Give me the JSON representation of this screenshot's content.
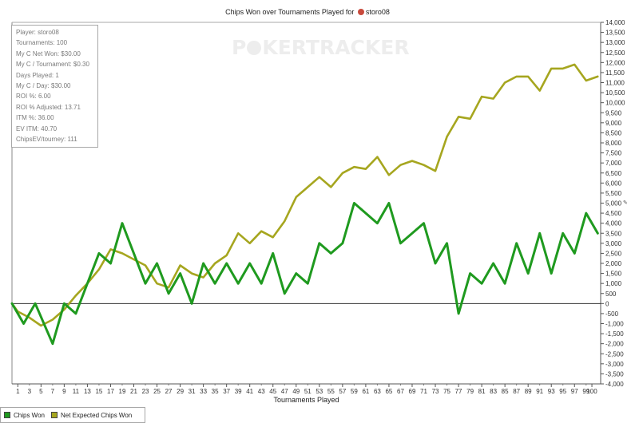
{
  "chart_data": {
    "type": "line",
    "title_prefix": "Chips Won over Tournaments Played for",
    "title_player": "storo08",
    "xlabel": "Tournaments Played",
    "ylabel": "",
    "xlim": [
      0,
      100
    ],
    "ylim": [
      -4000,
      14000
    ],
    "x_ticks": [
      1,
      5,
      9,
      13,
      17,
      21,
      25,
      29,
      33,
      37,
      41,
      45,
      49,
      53,
      57,
      61,
      65,
      69,
      73,
      77,
      81,
      85,
      89,
      93,
      97,
      100
    ],
    "x_tick_labels": [
      "1",
      "5",
      "9",
      "13",
      "17",
      "21",
      "25",
      "29",
      "33",
      "37",
      "41",
      "45",
      "49",
      "53",
      "57",
      "61",
      "65",
      "69",
      "73",
      "77",
      "81",
      "85",
      "89",
      "93",
      "97",
      "100"
    ],
    "x_minor_ticks": [
      3,
      7,
      11,
      15,
      19,
      23,
      27,
      31,
      35,
      39,
      43,
      47,
      51,
      55,
      59,
      63,
      67,
      71,
      75,
      79,
      83,
      87,
      91,
      95,
      99
    ],
    "x_minor_tick_labels": [
      "3",
      "7",
      "11",
      "15",
      "19",
      "23",
      "27",
      "31",
      "35",
      "39",
      "43",
      "47",
      "51",
      "55",
      "59",
      "63",
      "67",
      "71",
      "75",
      "79",
      "83",
      "87",
      "91",
      "95",
      "99"
    ],
    "y_ticks": [
      -4000,
      -3500,
      -3000,
      -2500,
      -2000,
      -1500,
      -1000,
      -500,
      0,
      500,
      1000,
      1500,
      2000,
      2500,
      3000,
      3500,
      4000,
      4500,
      5000,
      5500,
      6000,
      6500,
      7000,
      7500,
      8000,
      8500,
      9000,
      9500,
      10000,
      10500,
      11000,
      11500,
      12000,
      12500,
      13000,
      13500,
      14000
    ],
    "y_tick_labels": [
      "-4,000",
      "-3,500",
      "-3,000",
      "-2,500",
      "-2,000",
      "-1,500",
      "-1,000",
      "-500",
      "0",
      "500",
      "1,000",
      "1,500",
      "2,000",
      "2,500",
      "3,000",
      "3,500",
      "4,000",
      "4,500",
      "5,000",
      "5,500",
      "6,000",
      "6,500",
      "7,000",
      "7,500",
      "8,000",
      "8,500",
      "9,000",
      "9,500",
      "10,000",
      "10,500",
      "11,000",
      "11,500",
      "12,000",
      "12,500",
      "13,000",
      "13,500",
      "14,000"
    ],
    "grid": false,
    "legend_position": "bottom-left",
    "series": [
      {
        "name": "Chips Won",
        "color": "#1f9a1f",
        "x": [
          0,
          2,
          4,
          7,
          9,
          11,
          15,
          17,
          19,
          23,
          25,
          27,
          29,
          31,
          33,
          35,
          37,
          39,
          41,
          43,
          45,
          47,
          49,
          51,
          53,
          55,
          57,
          59,
          63,
          65,
          67,
          71,
          73,
          75,
          77,
          79,
          81,
          83,
          85,
          87,
          89,
          91,
          93,
          95,
          97,
          99,
          101
        ],
        "y": [
          0,
          -1000,
          0,
          -2000,
          0,
          -500,
          2500,
          2000,
          4000,
          1000,
          2000,
          500,
          1500,
          0,
          2000,
          1000,
          2000,
          1000,
          2000,
          1000,
          2500,
          500,
          1500,
          1000,
          3000,
          2500,
          3000,
          5000,
          4000,
          5000,
          3000,
          4000,
          2000,
          3000,
          -500,
          1500,
          1000,
          2000,
          1000,
          3000,
          1500,
          3500,
          1500,
          3500,
          2500,
          4500,
          3500
        ]
      },
      {
        "name": "Net Expected Chips Won",
        "color": "#a6a61f",
        "x": [
          0,
          1,
          3,
          5,
          7,
          9,
          11,
          13,
          15,
          17,
          19,
          21,
          23,
          25,
          27,
          29,
          31,
          33,
          35,
          37,
          39,
          41,
          43,
          45,
          47,
          49,
          51,
          53,
          55,
          57,
          59,
          61,
          63,
          65,
          67,
          69,
          71,
          73,
          75,
          77,
          79,
          81,
          83,
          85,
          87,
          89,
          91,
          93,
          95,
          97,
          99,
          101
        ],
        "y": [
          0,
          -400,
          -700,
          -1100,
          -800,
          -300,
          400,
          1000,
          1700,
          2700,
          2500,
          2200,
          1900,
          1000,
          800,
          1900,
          1500,
          1300,
          2000,
          2400,
          3500,
          3000,
          3600,
          3300,
          4100,
          5300,
          5800,
          6300,
          5800,
          6500,
          6800,
          6700,
          7300,
          6400,
          6900,
          7100,
          6900,
          6600,
          8300,
          9300,
          9200,
          10300,
          10200,
          11000,
          11300,
          11300,
          10600,
          11700,
          11700,
          11900,
          11100,
          11300
        ]
      }
    ]
  },
  "stats": [
    "Player: storo08",
    "Tournaments: 100",
    "My C Net Won: $30.00",
    "My C / Tournament: $0.30",
    "Days Played: 1",
    "My C / Day: $30.00",
    "ROI %: 6.00",
    "ROI % Adjusted: 13.71",
    "ITM %: 36.00",
    "EV ITM: 40.70",
    "ChipsEV/tourney: 111"
  ],
  "watermark_left": "P",
  "watermark_right": "KERTRACKER",
  "legend": {
    "items": [
      {
        "label": "Chips Won",
        "color": "#1f9a1f"
      },
      {
        "label": "Net Expected Chips Won",
        "color": "#a6a61f"
      }
    ]
  }
}
